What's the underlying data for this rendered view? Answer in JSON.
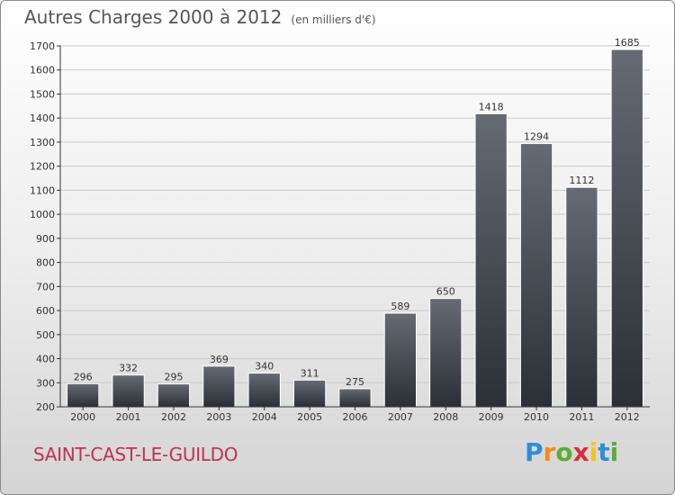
{
  "header": {
    "title": "Autres Charges 2000 à 2012",
    "unit": "(en milliers d'€)"
  },
  "footer": {
    "town": "SAINT-CAST-LE-GUILDO"
  },
  "logo": {
    "text": "Proxiti",
    "letters": [
      {
        "ch": "P",
        "color": "#2e8fd6"
      },
      {
        "ch": "r",
        "color": "#f28c1c"
      },
      {
        "ch": "o",
        "color": "#5aae32"
      },
      {
        "ch": "x",
        "color": "#d6303a"
      },
      {
        "ch": "i",
        "color": "#f2c41c"
      },
      {
        "ch": "t",
        "color": "#2e8fd6"
      },
      {
        "ch": "i",
        "color": "#5aae32"
      }
    ]
  },
  "chart_data": {
    "type": "bar",
    "title": "Autres Charges 2000 à 2012",
    "subtitle": "(en milliers d'€)",
    "categories": [
      "2000",
      "2001",
      "2002",
      "2003",
      "2004",
      "2005",
      "2006",
      "2007",
      "2008",
      "2009",
      "2010",
      "2011",
      "2012"
    ],
    "values": [
      296,
      332,
      295,
      369,
      340,
      311,
      275,
      589,
      650,
      1418,
      1294,
      1112,
      1685
    ],
    "ylim": [
      200,
      1700
    ],
    "yticks": [
      200,
      300,
      400,
      500,
      600,
      700,
      800,
      900,
      1000,
      1100,
      1200,
      1300,
      1400,
      1500,
      1600,
      1700
    ],
    "grid": true,
    "xlabel": "",
    "ylabel": "",
    "bar_color": "#3d4148"
  }
}
